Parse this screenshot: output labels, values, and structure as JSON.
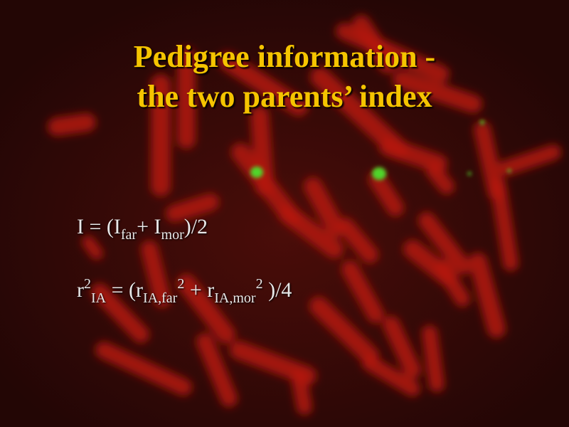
{
  "slide": {
    "title_lines": [
      "Pedigree information -",
      "the two parents’ index"
    ],
    "background": "red fluorescent chromosome micrograph with green signals",
    "colors": {
      "title": "#f5c400",
      "text": "#e8e8e8",
      "chromosome": "#c0130d",
      "signal": "#4fd62a",
      "background": "#2b0806"
    },
    "formula1": {
      "lhs": "I = (I",
      "sub_far": "far",
      "plus": "+ I",
      "sub_mor": "mor",
      "end": ")/2"
    },
    "formula2": {
      "r": "r",
      "sup_2a": "2",
      "sub_IA": "IA",
      "eq": " = (r",
      "sub_IA_far": "IA,far",
      "sup_2b": "2",
      "plus": " + r",
      "sub_IA_mor": "IA,mor",
      "sup_2c": "2",
      "end": " )/4"
    }
  }
}
